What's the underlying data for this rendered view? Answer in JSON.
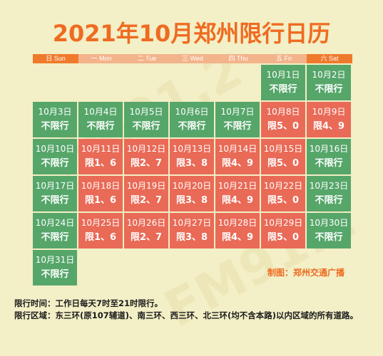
{
  "title": "2021年10月郑州限行日历",
  "weekdays": [
    "日 Sun",
    "一 Mon",
    "二 Tue",
    "三 Wed",
    "四 Thu",
    "五 Fri",
    "六 Sat"
  ],
  "weekday_header_colors": [
    "dark",
    "light",
    "light",
    "light",
    "light",
    "light",
    "dark"
  ],
  "colors": {
    "green": "#56a66a",
    "red": "#e96a56",
    "accent": "#ef6b22",
    "background": "#f3efc6"
  },
  "days": [
    null,
    null,
    null,
    null,
    null,
    {
      "date": "10月1日",
      "status": "不限行",
      "color": "green"
    },
    {
      "date": "10月2日",
      "status": "不限行",
      "color": "green"
    },
    {
      "date": "10月3日",
      "status": "不限行",
      "color": "green"
    },
    {
      "date": "10月4日",
      "status": "不限行",
      "color": "green"
    },
    {
      "date": "10月5日",
      "status": "不限行",
      "color": "green"
    },
    {
      "date": "10月6日",
      "status": "不限行",
      "color": "green"
    },
    {
      "date": "10月7日",
      "status": "不限行",
      "color": "green"
    },
    {
      "date": "10月8日",
      "status": "限5、0",
      "color": "red"
    },
    {
      "date": "10月9日",
      "status": "限4、9",
      "color": "red"
    },
    {
      "date": "10月10日",
      "status": "不限行",
      "color": "green"
    },
    {
      "date": "10月11日",
      "status": "限1、6",
      "color": "red"
    },
    {
      "date": "10月12日",
      "status": "限2、7",
      "color": "red"
    },
    {
      "date": "10月13日",
      "status": "限3、8",
      "color": "red"
    },
    {
      "date": "10月14日",
      "status": "限4、9",
      "color": "red"
    },
    {
      "date": "10月15日",
      "status": "限5、0",
      "color": "red"
    },
    {
      "date": "10月16日",
      "status": "不限行",
      "color": "green"
    },
    {
      "date": "10月17日",
      "status": "不限行",
      "color": "green"
    },
    {
      "date": "10月18日",
      "status": "限1、6",
      "color": "red"
    },
    {
      "date": "10月19日",
      "status": "限2、7",
      "color": "red"
    },
    {
      "date": "10月20日",
      "status": "限3、8",
      "color": "red"
    },
    {
      "date": "10月21日",
      "status": "限4、9",
      "color": "red"
    },
    {
      "date": "10月22日",
      "status": "限5、0",
      "color": "red"
    },
    {
      "date": "10月23日",
      "status": "不限行",
      "color": "green"
    },
    {
      "date": "10月24日",
      "status": "不限行",
      "color": "green"
    },
    {
      "date": "10月25日",
      "status": "限1、6",
      "color": "red"
    },
    {
      "date": "10月26日",
      "status": "限2、7",
      "color": "red"
    },
    {
      "date": "10月27日",
      "status": "限3、8",
      "color": "red"
    },
    {
      "date": "10月28日",
      "status": "限4、9",
      "color": "red"
    },
    {
      "date": "10月29日",
      "status": "限5、0",
      "color": "red"
    },
    {
      "date": "10月30日",
      "status": "不限行",
      "color": "green"
    },
    {
      "date": "10月31日",
      "status": "不限行",
      "color": "green"
    }
  ],
  "credit": "制图：郑州交通广播",
  "notes": {
    "time": "限行时间：工作日每天7时至21时限行。",
    "area": "限行区域：东三环(原107辅道)、南三环、西三环、北三环(均不含本路)以内区域的所有道路。"
  },
  "watermark": "FM91.2"
}
